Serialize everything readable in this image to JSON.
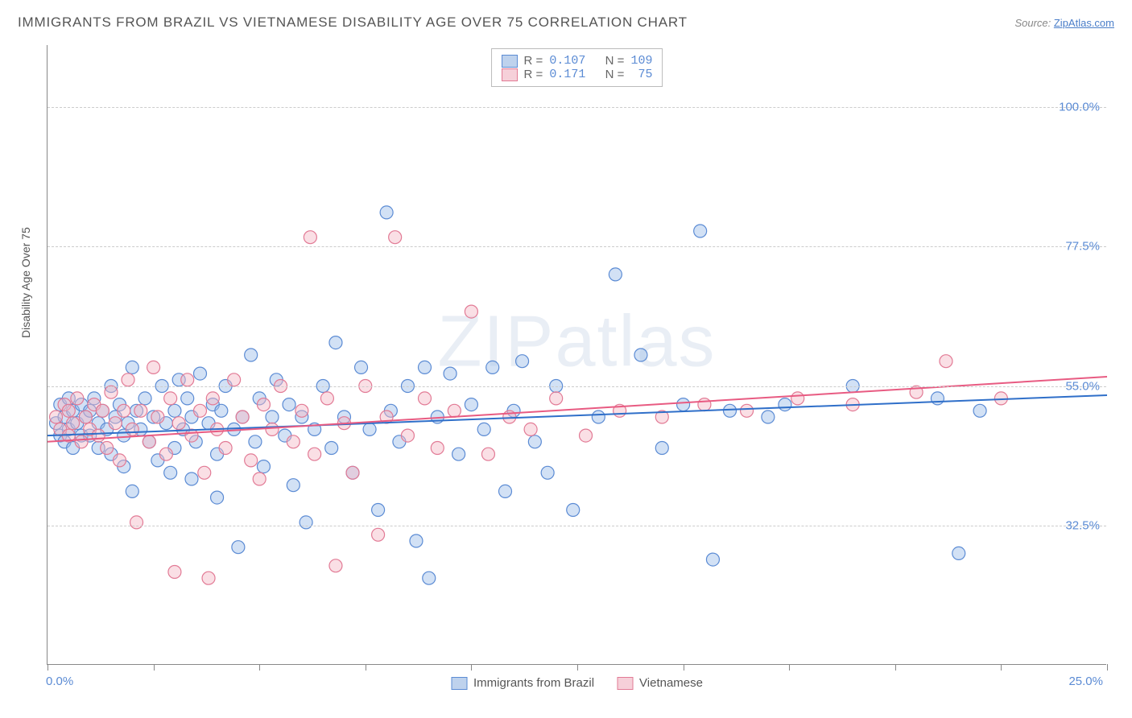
{
  "title": "IMMIGRANTS FROM BRAZIL VS VIETNAMESE DISABILITY AGE OVER 75 CORRELATION CHART",
  "source_prefix": "Source: ",
  "source_link": "ZipAtlas.com",
  "watermark": "ZIPatlas",
  "chart": {
    "type": "scatter",
    "background_color": "#ffffff",
    "grid_color": "#cccccc",
    "axis_color": "#888888",
    "text_color": "#555555",
    "tick_label_color": "#5b8bd4",
    "ylabel": "Disability Age Over 75",
    "label_fontsize": 14,
    "xlim": [
      0,
      25
    ],
    "ylim": [
      10,
      110
    ],
    "x_ticks": [
      0,
      2.5,
      5,
      7.5,
      10,
      12.5,
      15,
      17.5,
      20,
      22.5,
      25
    ],
    "x_tick_labels": {
      "0": "0.0%",
      "25": "25.0%"
    },
    "y_gridlines": [
      32.5,
      55.0,
      77.5,
      100.0
    ],
    "y_tick_labels": [
      "32.5%",
      "55.0%",
      "77.5%",
      "100.0%"
    ],
    "marker_radius": 8,
    "marker_opacity": 0.45,
    "line_width": 2,
    "series": [
      {
        "name": "Immigrants from Brazil",
        "fill_color": "#9cbce8",
        "stroke_color": "#5b8bd4",
        "line_color": "#2f6fc9",
        "R": "0.107",
        "N": "109",
        "trend": {
          "x1": 0,
          "y1": 47.0,
          "x2": 25,
          "y2": 53.5
        },
        "points": [
          [
            0.2,
            49
          ],
          [
            0.3,
            52
          ],
          [
            0.3,
            47
          ],
          [
            0.4,
            50
          ],
          [
            0.4,
            46
          ],
          [
            0.5,
            53
          ],
          [
            0.5,
            48
          ],
          [
            0.6,
            51
          ],
          [
            0.6,
            45
          ],
          [
            0.7,
            49
          ],
          [
            0.8,
            52
          ],
          [
            0.8,
            47
          ],
          [
            0.9,
            50
          ],
          [
            1.0,
            51
          ],
          [
            1.0,
            47
          ],
          [
            1.1,
            53
          ],
          [
            1.2,
            49
          ],
          [
            1.2,
            45
          ],
          [
            1.3,
            51
          ],
          [
            1.4,
            48
          ],
          [
            1.5,
            55
          ],
          [
            1.5,
            44
          ],
          [
            1.6,
            50
          ],
          [
            1.7,
            52
          ],
          [
            1.8,
            47
          ],
          [
            1.8,
            42
          ],
          [
            1.9,
            49
          ],
          [
            2.0,
            58
          ],
          [
            2.0,
            38
          ],
          [
            2.1,
            51
          ],
          [
            2.2,
            48
          ],
          [
            2.3,
            53
          ],
          [
            2.4,
            46
          ],
          [
            2.5,
            50
          ],
          [
            2.6,
            43
          ],
          [
            2.7,
            55
          ],
          [
            2.8,
            49
          ],
          [
            2.9,
            41
          ],
          [
            3.0,
            51
          ],
          [
            3.0,
            45
          ],
          [
            3.1,
            56
          ],
          [
            3.2,
            48
          ],
          [
            3.3,
            53
          ],
          [
            3.4,
            40
          ],
          [
            3.4,
            50
          ],
          [
            3.5,
            46
          ],
          [
            3.6,
            57
          ],
          [
            3.8,
            49
          ],
          [
            3.9,
            52
          ],
          [
            4.0,
            44
          ],
          [
            4.0,
            37
          ],
          [
            4.1,
            51
          ],
          [
            4.2,
            55
          ],
          [
            4.4,
            48
          ],
          [
            4.5,
            29
          ],
          [
            4.6,
            50
          ],
          [
            4.8,
            60
          ],
          [
            4.9,
            46
          ],
          [
            5.0,
            53
          ],
          [
            5.1,
            42
          ],
          [
            5.3,
            50
          ],
          [
            5.4,
            56
          ],
          [
            5.6,
            47
          ],
          [
            5.7,
            52
          ],
          [
            5.8,
            39
          ],
          [
            6.0,
            50
          ],
          [
            6.1,
            33
          ],
          [
            6.3,
            48
          ],
          [
            6.5,
            55
          ],
          [
            6.7,
            45
          ],
          [
            6.8,
            62
          ],
          [
            7.0,
            50
          ],
          [
            7.2,
            41
          ],
          [
            7.4,
            58
          ],
          [
            7.6,
            48
          ],
          [
            7.8,
            35
          ],
          [
            8.0,
            83
          ],
          [
            8.1,
            51
          ],
          [
            8.3,
            46
          ],
          [
            8.5,
            55
          ],
          [
            8.7,
            30
          ],
          [
            8.9,
            58
          ],
          [
            9.0,
            24
          ],
          [
            9.2,
            50
          ],
          [
            9.5,
            57
          ],
          [
            9.7,
            44
          ],
          [
            10.0,
            52
          ],
          [
            10.3,
            48
          ],
          [
            10.5,
            58
          ],
          [
            10.8,
            38
          ],
          [
            11.0,
            51
          ],
          [
            11.2,
            59
          ],
          [
            11.5,
            46
          ],
          [
            11.8,
            41
          ],
          [
            12.0,
            55
          ],
          [
            12.4,
            35
          ],
          [
            13.0,
            50
          ],
          [
            13.4,
            73
          ],
          [
            14.0,
            60
          ],
          [
            14.5,
            45
          ],
          [
            15.0,
            52
          ],
          [
            15.4,
            80
          ],
          [
            15.7,
            27
          ],
          [
            16.1,
            51
          ],
          [
            17.0,
            50
          ],
          [
            17.4,
            52
          ],
          [
            19.0,
            55
          ],
          [
            21.0,
            53
          ],
          [
            21.5,
            28
          ],
          [
            22.0,
            51
          ]
        ]
      },
      {
        "name": "Vietnamese",
        "fill_color": "#f3b7c6",
        "stroke_color": "#e27a95",
        "line_color": "#e85b82",
        "R": "0.171",
        "N": "75",
        "trend": {
          "x1": 0,
          "y1": 46.0,
          "x2": 25,
          "y2": 56.5
        },
        "points": [
          [
            0.2,
            50
          ],
          [
            0.3,
            48
          ],
          [
            0.4,
            52
          ],
          [
            0.5,
            47
          ],
          [
            0.5,
            51
          ],
          [
            0.6,
            49
          ],
          [
            0.7,
            53
          ],
          [
            0.8,
            46
          ],
          [
            0.9,
            50
          ],
          [
            1.0,
            48
          ],
          [
            1.1,
            52
          ],
          [
            1.2,
            47
          ],
          [
            1.3,
            51
          ],
          [
            1.4,
            45
          ],
          [
            1.5,
            54
          ],
          [
            1.6,
            49
          ],
          [
            1.7,
            43
          ],
          [
            1.8,
            51
          ],
          [
            1.9,
            56
          ],
          [
            2.0,
            48
          ],
          [
            2.1,
            33
          ],
          [
            2.2,
            51
          ],
          [
            2.4,
            46
          ],
          [
            2.5,
            58
          ],
          [
            2.6,
            50
          ],
          [
            2.8,
            44
          ],
          [
            2.9,
            53
          ],
          [
            3.0,
            25
          ],
          [
            3.1,
            49
          ],
          [
            3.3,
            56
          ],
          [
            3.4,
            47
          ],
          [
            3.6,
            51
          ],
          [
            3.7,
            41
          ],
          [
            3.8,
            24
          ],
          [
            3.9,
            53
          ],
          [
            4.0,
            48
          ],
          [
            4.2,
            45
          ],
          [
            4.4,
            56
          ],
          [
            4.6,
            50
          ],
          [
            4.8,
            43
          ],
          [
            5.0,
            40
          ],
          [
            5.1,
            52
          ],
          [
            5.3,
            48
          ],
          [
            5.5,
            55
          ],
          [
            5.8,
            46
          ],
          [
            6.0,
            51
          ],
          [
            6.2,
            79
          ],
          [
            6.3,
            44
          ],
          [
            6.6,
            53
          ],
          [
            6.8,
            26
          ],
          [
            7.0,
            49
          ],
          [
            7.2,
            41
          ],
          [
            7.5,
            55
          ],
          [
            7.8,
            31
          ],
          [
            8.0,
            50
          ],
          [
            8.2,
            79
          ],
          [
            8.5,
            47
          ],
          [
            8.9,
            53
          ],
          [
            9.2,
            45
          ],
          [
            9.6,
            51
          ],
          [
            10.0,
            67
          ],
          [
            10.4,
            44
          ],
          [
            10.9,
            50
          ],
          [
            11.4,
            48
          ],
          [
            12.0,
            53
          ],
          [
            12.7,
            47
          ],
          [
            13.5,
            51
          ],
          [
            14.5,
            50
          ],
          [
            15.5,
            52
          ],
          [
            16.5,
            51
          ],
          [
            17.7,
            53
          ],
          [
            19.0,
            52
          ],
          [
            20.5,
            54
          ],
          [
            21.2,
            59
          ],
          [
            22.5,
            53
          ]
        ]
      }
    ],
    "legend_top_labels": {
      "R": "R =",
      "N": "N ="
    },
    "legend_bottom": [
      "Immigrants from Brazil",
      "Vietnamese"
    ]
  }
}
